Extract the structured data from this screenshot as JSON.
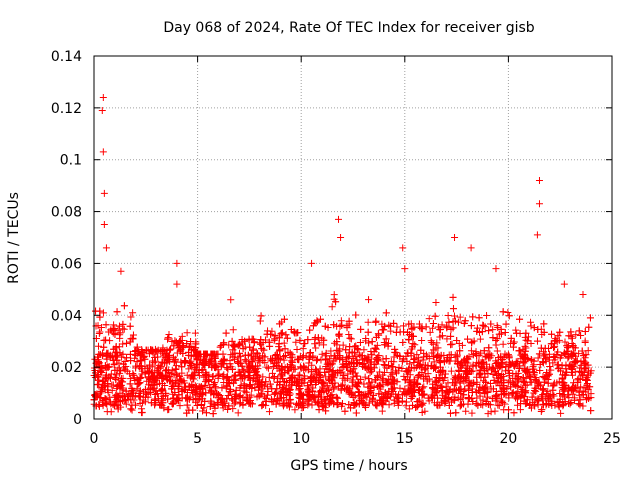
{
  "chart_data": {
    "type": "scatter",
    "title": "Day 068 of 2024, Rate Of TEC Index for receiver gisb",
    "xlabel": "GPS time / hours",
    "ylabel": "ROTI / TECUs",
    "xlim": [
      0,
      25
    ],
    "ylim": [
      0,
      0.14
    ],
    "x_ticks": [
      0,
      5,
      10,
      15,
      20,
      25
    ],
    "y_ticks": [
      0,
      0.02,
      0.04,
      0.06,
      0.08,
      0.1,
      0.12,
      0.14
    ],
    "x_tick_labels": [
      "0",
      "5",
      "10",
      "15",
      "20",
      "25"
    ],
    "y_tick_labels": [
      "0",
      "0.02",
      "0.04",
      "0.06",
      "0.08",
      "0.1",
      "0.12",
      "0.14"
    ],
    "grid": true,
    "marker": "+",
    "series_color": "#ff0000",
    "data_extent_hours": [
      0,
      24
    ],
    "typical_band": [
      0.005,
      0.025
    ],
    "peaks": [
      {
        "x": 0.45,
        "y": 0.124
      },
      {
        "x": 0.4,
        "y": 0.119
      },
      {
        "x": 0.45,
        "y": 0.103
      },
      {
        "x": 0.5,
        "y": 0.087
      },
      {
        "x": 0.5,
        "y": 0.075
      },
      {
        "x": 0.6,
        "y": 0.066
      },
      {
        "x": 1.3,
        "y": 0.057
      },
      {
        "x": 4.0,
        "y": 0.06
      },
      {
        "x": 4.0,
        "y": 0.052
      },
      {
        "x": 6.6,
        "y": 0.046
      },
      {
        "x": 10.5,
        "y": 0.06
      },
      {
        "x": 11.8,
        "y": 0.077
      },
      {
        "x": 11.9,
        "y": 0.07
      },
      {
        "x": 14.9,
        "y": 0.066
      },
      {
        "x": 15.0,
        "y": 0.058
      },
      {
        "x": 17.4,
        "y": 0.07
      },
      {
        "x": 18.2,
        "y": 0.066
      },
      {
        "x": 19.4,
        "y": 0.058
      },
      {
        "x": 21.5,
        "y": 0.092
      },
      {
        "x": 21.5,
        "y": 0.083
      },
      {
        "x": 21.4,
        "y": 0.071
      },
      {
        "x": 22.7,
        "y": 0.052
      },
      {
        "x": 23.6,
        "y": 0.048
      }
    ]
  }
}
